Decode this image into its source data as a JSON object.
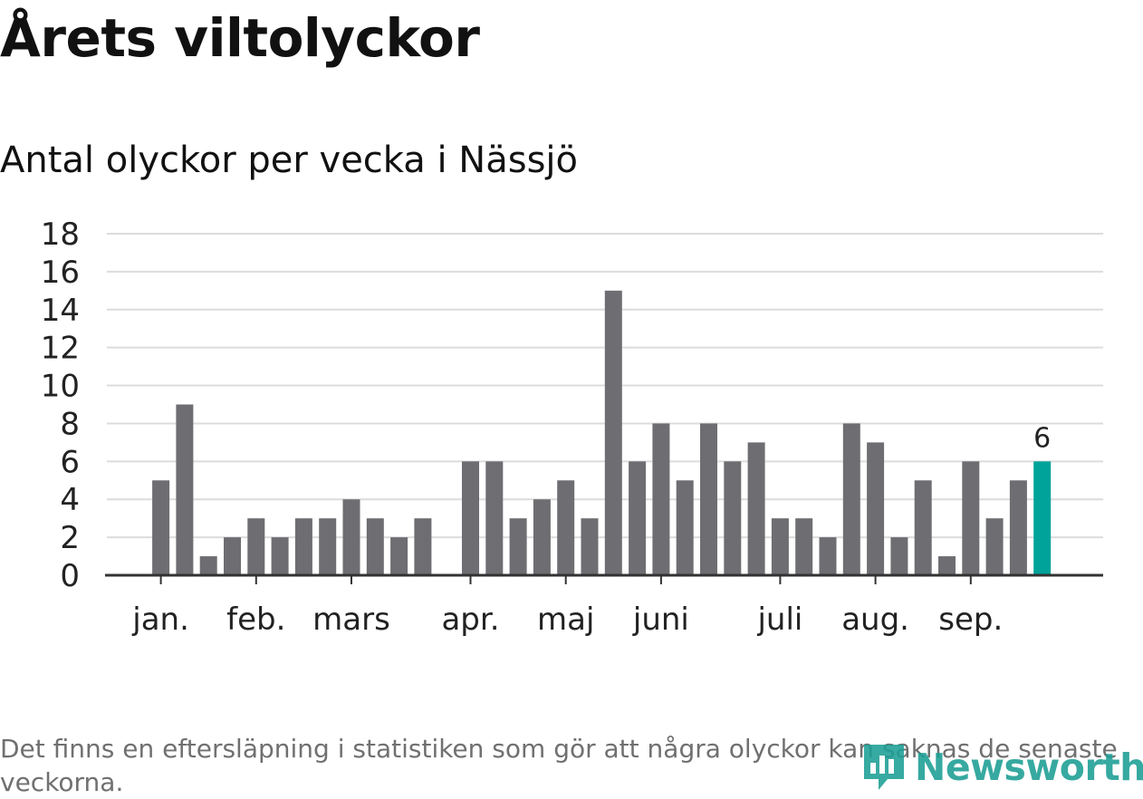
{
  "title": "Årets viltolyckor",
  "subtitle": "Antal olyckor per vecka i Nässjö",
  "footnote": "Det finns en eftersläpning i statistiken som gör att några olyckor kan saknas de senaste veckorna.",
  "logo": {
    "text": "Newsworthy",
    "icon": "newsworthy-logo-icon",
    "color": "#1b9e94"
  },
  "colors": {
    "bar": "#6e6d72",
    "highlight": "#00a39a",
    "grid": "#dcdcdc",
    "axis": "#333333"
  },
  "chart_data": {
    "type": "bar",
    "title": "Antal olyckor per vecka i Nässjö",
    "xlabel": "",
    "ylabel": "",
    "ylim": [
      0,
      18
    ],
    "yticks": [
      0,
      2,
      4,
      6,
      8,
      10,
      12,
      14,
      16,
      18
    ],
    "grid": true,
    "legend": "none",
    "weeks": [
      1,
      2,
      3,
      4,
      5,
      6,
      7,
      8,
      9,
      10,
      11,
      12,
      13,
      14,
      15,
      16,
      17,
      18,
      19,
      20,
      21,
      22,
      23,
      24,
      25,
      26,
      27,
      28,
      29,
      30,
      31,
      32,
      33,
      34,
      35,
      36,
      37,
      38,
      39,
      40,
      41
    ],
    "values": [
      null,
      null,
      5,
      9,
      1,
      2,
      3,
      2,
      3,
      3,
      4,
      3,
      2,
      3,
      null,
      6,
      6,
      3,
      4,
      5,
      3,
      15,
      6,
      8,
      5,
      8,
      6,
      7,
      3,
      3,
      2,
      8,
      7,
      2,
      5,
      1,
      6,
      3,
      5,
      6,
      null
    ],
    "highlight_index": 39,
    "highlight_label": "6",
    "month_ticks": [
      {
        "label": "jan.",
        "week": 3
      },
      {
        "label": "feb.",
        "week": 7
      },
      {
        "label": "mars",
        "week": 11
      },
      {
        "label": "apr.",
        "week": 16
      },
      {
        "label": "maj",
        "week": 20
      },
      {
        "label": "juni",
        "week": 24
      },
      {
        "label": "juli",
        "week": 29
      },
      {
        "label": "aug.",
        "week": 33
      },
      {
        "label": "sep.",
        "week": 37
      }
    ]
  }
}
